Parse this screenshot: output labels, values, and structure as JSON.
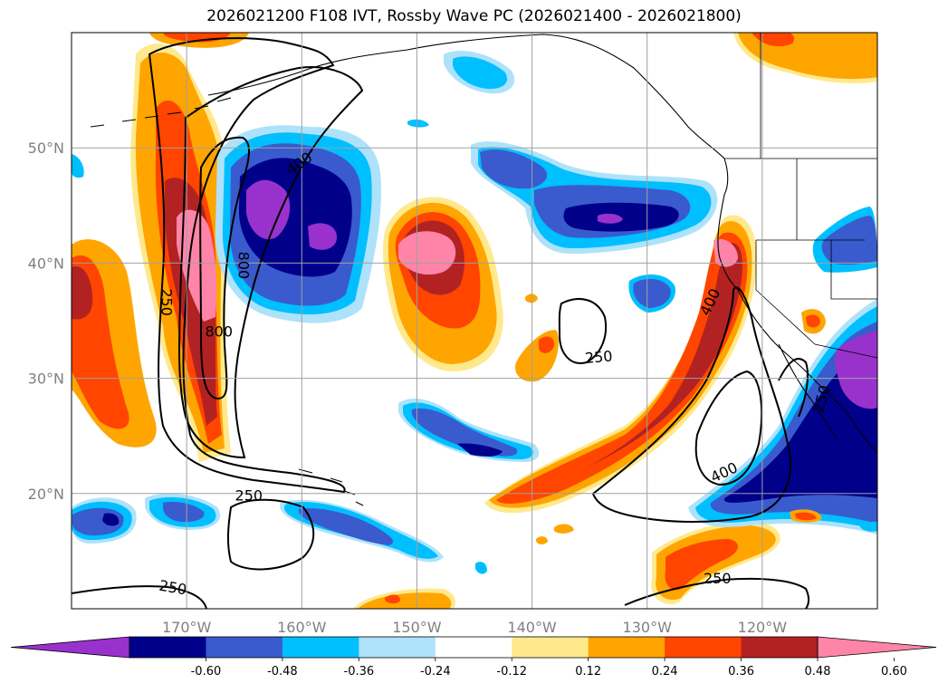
{
  "title": "2026021200 F108 IVT, Rossby Wave PC (2026021400 - 2026021800)",
  "map": {
    "lon_range": [
      -180,
      -110
    ],
    "lat_range": [
      10,
      60
    ],
    "lat_ticks": [
      {
        "value": 20,
        "label": "20°N"
      },
      {
        "value": 30,
        "label": "30°N"
      },
      {
        "value": 40,
        "label": "40°N"
      },
      {
        "value": 50,
        "label": "50°N"
      }
    ],
    "lon_ticks": [
      {
        "value": -170,
        "label": "170°W"
      },
      {
        "value": -160,
        "label": "160°W"
      },
      {
        "value": -150,
        "label": "150°W"
      },
      {
        "value": -140,
        "label": "140°W"
      },
      {
        "value": -130,
        "label": "130°W"
      },
      {
        "value": -120,
        "label": "120°W"
      }
    ],
    "grid": true,
    "contour_labels": [
      {
        "text": "400",
        "lon": -160.2,
        "lat": 48.6,
        "rot": -35
      },
      {
        "text": "800",
        "lon": -165.1,
        "lat": 39.8,
        "rot": 90
      },
      {
        "text": "250",
        "lon": -171.8,
        "lat": 36.6,
        "rot": 90
      },
      {
        "text": "800",
        "lon": -167.2,
        "lat": 34.0,
        "rot": 0
      },
      {
        "text": "250",
        "lon": -164.6,
        "lat": 19.8,
        "rot": 0
      },
      {
        "text": "250",
        "lon": -171.2,
        "lat": 11.8,
        "rot": 10
      },
      {
        "text": "250",
        "lon": -134.2,
        "lat": 31.8,
        "rot": -5
      },
      {
        "text": "400",
        "lon": -123.3,
        "lat": 21.8,
        "rot": -25
      },
      {
        "text": "250",
        "lon": -114.8,
        "lat": 28.2,
        "rot": -75
      },
      {
        "text": "250",
        "lon": -123.9,
        "lat": 12.6,
        "rot": 0
      },
      {
        "text": "400",
        "lon": -124.5,
        "lat": 36.6,
        "rot": -65
      }
    ]
  },
  "colorbar": {
    "ticks": [
      "-0.60",
      "-0.48",
      "-0.36",
      "-0.24",
      "-0.12",
      "0.12",
      "0.24",
      "0.36",
      "0.48",
      "0.60"
    ],
    "colors": [
      "#9932CC",
      "#00008B",
      "#3A5BCD",
      "#00BFFF",
      "#AEE2FA",
      "#FFFFFF",
      "#FFE98C",
      "#FFA500",
      "#FF4500",
      "#B22222",
      "#FF85A8"
    ]
  },
  "colors": {
    "purple": "#9932CC",
    "navy": "#00008B",
    "royal": "#3A5BCD",
    "sky": "#00BFFF",
    "pale_blue": "#AEE2FA",
    "pale_yellow": "#FFE98C",
    "orange": "#FFA500",
    "red_orange": "#FF4500",
    "dark_red": "#B22222",
    "pink": "#FF85A8"
  }
}
